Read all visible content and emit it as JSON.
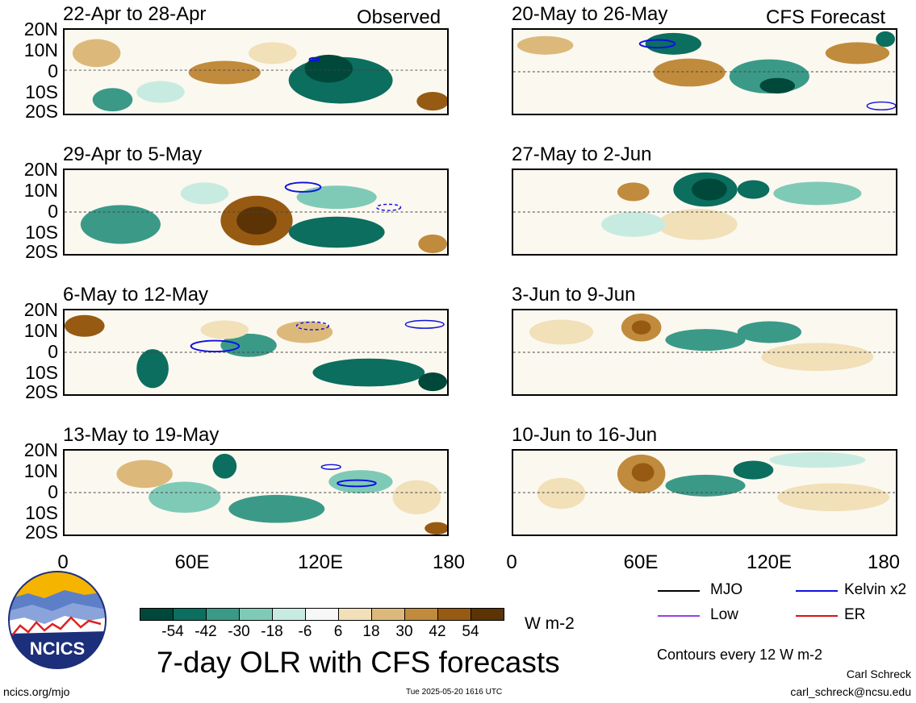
{
  "panels_left_header": "Observed",
  "panels_right_header": "CFS Forecast",
  "left_panels": [
    {
      "title": "22-Apr to 28-Apr"
    },
    {
      "title": "29-Apr to 5-May"
    },
    {
      "title": "6-May to 12-May"
    },
    {
      "title": "13-May to 19-May"
    }
  ],
  "right_panels": [
    {
      "title": "20-May to 26-May"
    },
    {
      "title": "27-May to 2-Jun"
    },
    {
      "title": "3-Jun to 9-Jun"
    },
    {
      "title": "10-Jun to 16-Jun"
    }
  ],
  "y_ticks": [
    "20N",
    "10N",
    "0",
    "10S",
    "20S"
  ],
  "x_ticks": [
    "0",
    "60E",
    "120E",
    "180"
  ],
  "colorbar": {
    "labels": [
      "-54",
      "-42",
      "-30",
      "-18",
      "-6",
      "6",
      "18",
      "30",
      "42",
      "54"
    ],
    "colors": [
      "#00483a",
      "#0b6e5e",
      "#3a9a87",
      "#7fcab6",
      "#c7ebe0",
      "#f7f7f7",
      "#f1e0b8",
      "#dcb97a",
      "#c08b3c",
      "#975a12",
      "#5c3305"
    ],
    "units": "W m-2"
  },
  "legend": {
    "mjo": "MJO",
    "kelvin": "Kelvin x2",
    "low": "Low",
    "er": "ER",
    "colors": {
      "mjo": "#000000",
      "kelvin": "#1010e0",
      "low": "#9a40e0",
      "er": "#e01010"
    },
    "contours_note": "Contours every 12 W m-2"
  },
  "logo": {
    "text": "NCICS"
  },
  "main_title": "7-day OLR with CFS forecasts",
  "footer": {
    "url": "ncics.org/mjo",
    "timestamp": "Tue 2025-05-20 1616 UTC",
    "author": "Carl Schreck",
    "email": "carl_schreck@ncsu.edu"
  }
}
